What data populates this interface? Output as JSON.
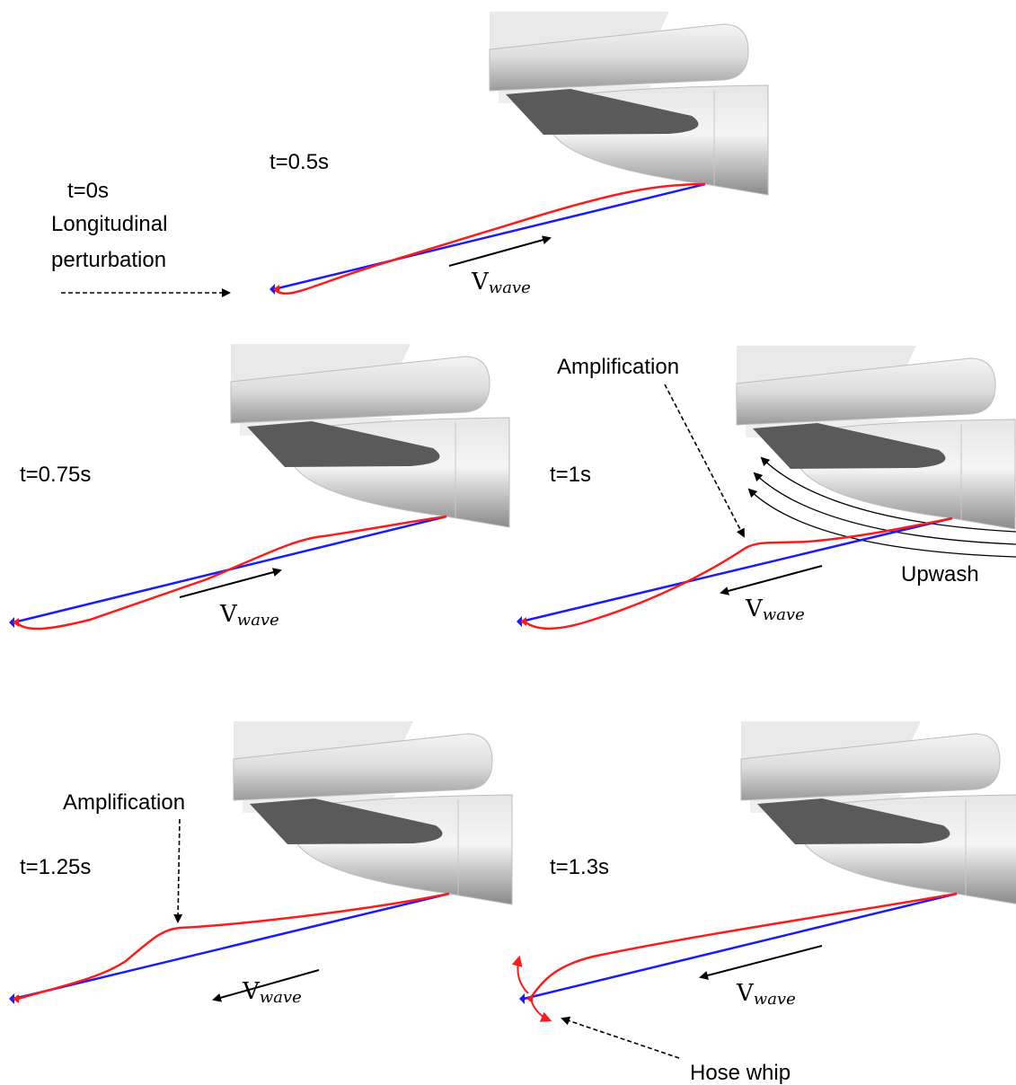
{
  "intro": {
    "time": "t=0s",
    "lines": [
      "Longitudinal",
      "perturbation"
    ]
  },
  "panels": [
    {
      "time": "t=0.5s",
      "wave_symbol": "V",
      "wave_subscript": "wave"
    },
    {
      "time": "t=0.75s",
      "wave_symbol": "V",
      "wave_subscript": "wave"
    },
    {
      "time": "t=1s",
      "wave_symbol": "V",
      "wave_subscript": "wave",
      "annotations": [
        "Amplification",
        "Upwash"
      ]
    },
    {
      "time": "t=1.25s",
      "wave_symbol": "V",
      "wave_subscript": "wave",
      "annotations": [
        "Amplification"
      ]
    },
    {
      "time": "t=1.3s",
      "wave_symbol": "V",
      "wave_subscript": "wave",
      "annotations": [
        "Hose whip"
      ]
    }
  ]
}
